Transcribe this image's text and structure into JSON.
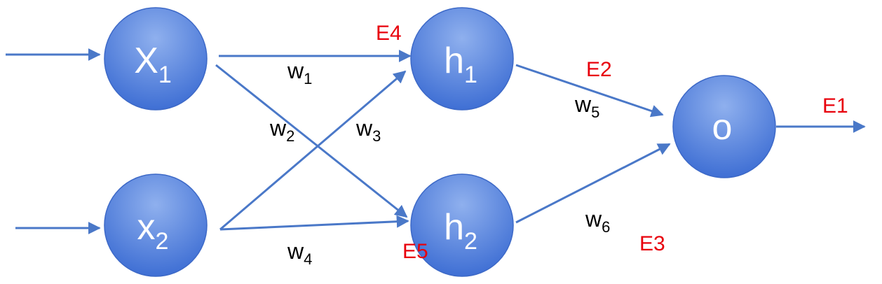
{
  "colors": {
    "node_fill_light": "#8fb0ee",
    "node_fill_dark": "#3f6fd4",
    "node_stroke": "#3d69c7",
    "edge": "#4a78c8",
    "weight_text": "#000000",
    "error_text": "#e8000b",
    "node_text": "#ffffff"
  },
  "nodes": {
    "x1": {
      "letter": "X",
      "sub": "1"
    },
    "x2": {
      "letter": "x",
      "sub": "2"
    },
    "h1": {
      "letter": "h",
      "sub": "1"
    },
    "h2": {
      "letter": "h",
      "sub": "2"
    },
    "o": {
      "letter": "o"
    }
  },
  "weights": {
    "w1": {
      "letter": "w",
      "sub": "1"
    },
    "w2": {
      "letter": "w",
      "sub": "2"
    },
    "w3": {
      "letter": "w",
      "sub": "3"
    },
    "w4": {
      "letter": "w",
      "sub": "4"
    },
    "w5": {
      "letter": "w",
      "sub": "5"
    },
    "w6": {
      "letter": "w",
      "sub": "6"
    }
  },
  "errors": {
    "e1": "E1",
    "e2": "E2",
    "e3": "E3",
    "e4": "E4",
    "e5": "E5"
  }
}
